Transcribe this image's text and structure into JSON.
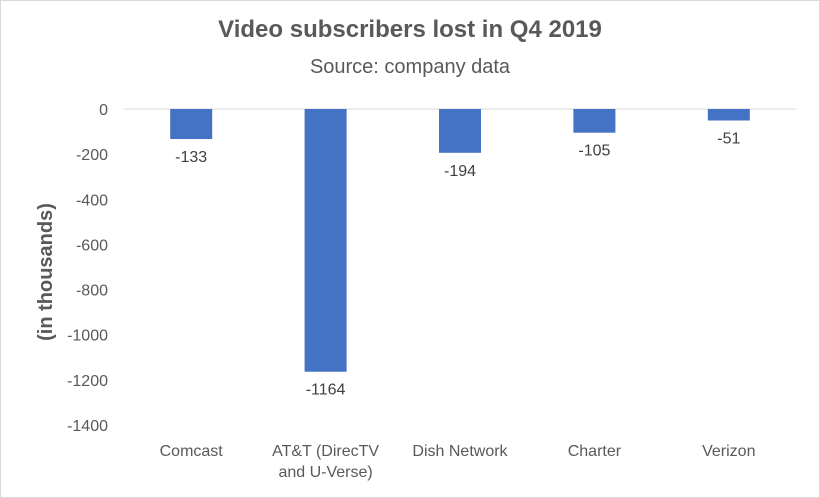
{
  "chart_data": {
    "type": "bar",
    "title": "Video subscribers lost in Q4 2019",
    "subtitle": "Source: company data",
    "xlabel": "",
    "ylabel": "(in thousands)",
    "categories": [
      [
        "Comcast"
      ],
      [
        "AT&T (DirecTV",
        "and U-Verse)"
      ],
      [
        "Dish Network"
      ],
      [
        "Charter"
      ],
      [
        "Verizon"
      ]
    ],
    "values": [
      -133,
      -1164,
      -194,
      -105,
      -51
    ],
    "data_labels": [
      "-133",
      "-1164",
      "-194",
      "-105",
      "-51"
    ],
    "yticks": [
      0,
      -200,
      -400,
      -600,
      -800,
      -1000,
      -1200,
      -1400
    ],
    "ylim": [
      -1400,
      0
    ],
    "grid": false,
    "colors": {
      "bar": "#4472c4",
      "axis": "#d9d9d9",
      "text": "#595959"
    }
  }
}
